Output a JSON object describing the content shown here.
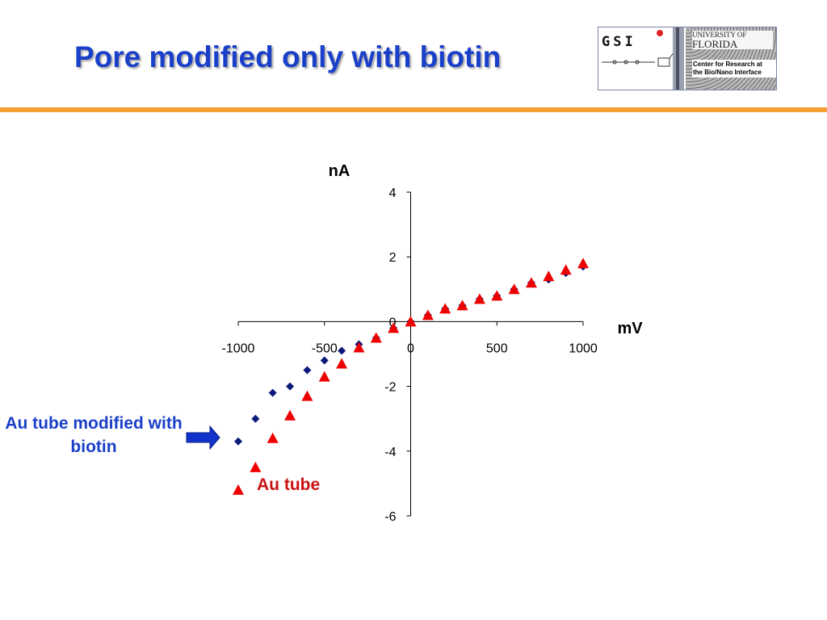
{
  "slide": {
    "title": "Pore modified only with biotin"
  },
  "logo": {
    "gsi": "GSI",
    "university_of": "UNIVERSITY OF",
    "florida": "FLORIDA",
    "center_line1": "Center for Research at",
    "center_line2": "the Bio/Nano Interface"
  },
  "annotations": {
    "blue_series_label": "Au tube modified with biotin",
    "red_series_label": "Au tube"
  },
  "chart_data": {
    "type": "scatter",
    "xlabel": "mV",
    "ylabel": "nA",
    "xlim": [
      -1000,
      1000
    ],
    "ylim": [
      -6,
      4
    ],
    "x_ticks": [
      -1000,
      -500,
      0,
      500,
      1000
    ],
    "y_ticks": [
      4,
      2,
      0,
      -2,
      -4,
      -6
    ],
    "grid": false,
    "series": [
      {
        "name": "Au tube modified with biotin",
        "marker": "diamond",
        "color": "#0b1a7a",
        "points": [
          [
            -1000,
            -3.7
          ],
          [
            -900,
            -3.0
          ],
          [
            -800,
            -2.2
          ],
          [
            -700,
            -2.0
          ],
          [
            -600,
            -1.5
          ],
          [
            -500,
            -1.2
          ],
          [
            -400,
            -0.9
          ],
          [
            -300,
            -0.7
          ],
          [
            -200,
            -0.5
          ],
          [
            -100,
            -0.2
          ],
          [
            0,
            0.0
          ],
          [
            100,
            0.2
          ],
          [
            200,
            0.4
          ],
          [
            300,
            0.5
          ],
          [
            400,
            0.7
          ],
          [
            500,
            0.8
          ],
          [
            600,
            1.0
          ],
          [
            700,
            1.2
          ],
          [
            800,
            1.3
          ],
          [
            900,
            1.5
          ],
          [
            1000,
            1.7
          ]
        ]
      },
      {
        "name": "Au tube",
        "marker": "triangle",
        "color": "#ee0000",
        "points": [
          [
            -1000,
            -5.2
          ],
          [
            -900,
            -4.5
          ],
          [
            -800,
            -3.6
          ],
          [
            -700,
            -2.9
          ],
          [
            -600,
            -2.3
          ],
          [
            -500,
            -1.7
          ],
          [
            -400,
            -1.3
          ],
          [
            -300,
            -0.8
          ],
          [
            -200,
            -0.5
          ],
          [
            -100,
            -0.2
          ],
          [
            0,
            0.0
          ],
          [
            100,
            0.2
          ],
          [
            200,
            0.4
          ],
          [
            300,
            0.5
          ],
          [
            400,
            0.7
          ],
          [
            500,
            0.8
          ],
          [
            600,
            1.0
          ],
          [
            700,
            1.2
          ],
          [
            800,
            1.4
          ],
          [
            900,
            1.6
          ],
          [
            1000,
            1.8
          ]
        ]
      }
    ]
  }
}
